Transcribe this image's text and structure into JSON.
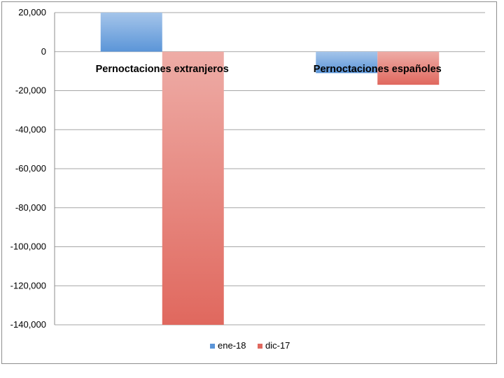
{
  "chart_data": {
    "type": "bar",
    "categories": [
      "Pernoctaciones extranjeros",
      "Pernoctaciones españoles"
    ],
    "series": [
      {
        "name": "ene-18",
        "values": [
          20200,
          -11000
        ],
        "color": "#5b95d8"
      },
      {
        "name": "dic-17",
        "values": [
          -141000,
          -17000
        ],
        "color": "#e0685e"
      }
    ],
    "ylim": [
      -140000,
      20000
    ],
    "yticks": [
      20000,
      0,
      -20000,
      -40000,
      -60000,
      -80000,
      -100000,
      -120000,
      -140000
    ],
    "ytick_labels": [
      "20,000",
      "0",
      "-20,000",
      "-40,000",
      "-60,000",
      "-80,000",
      "-100,000",
      "-120,000",
      "-140,000"
    ],
    "grid": true,
    "legend": "bottom",
    "title": "",
    "xlabel": "",
    "ylabel": ""
  }
}
